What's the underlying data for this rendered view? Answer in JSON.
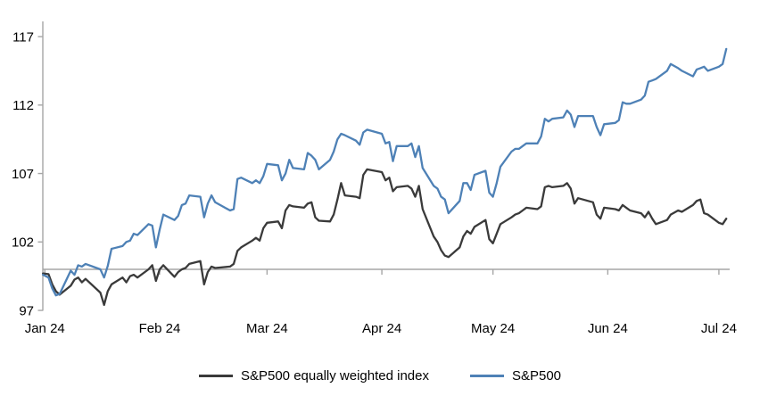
{
  "chart_data": {
    "type": "line",
    "title": "",
    "xlabel": "",
    "ylabel": "",
    "grid": false,
    "legend_position": "bottom-center",
    "colors": {
      "axis_gray": "#a6a6a6",
      "text": "#000000",
      "equal_weight_line": "#3a3a3a",
      "sp500_line": "#4e81b6"
    },
    "y_axis": {
      "ticks": [
        97,
        102,
        107,
        112,
        117
      ],
      "ylim": [
        97,
        117
      ],
      "baseline_value": 100
    },
    "x_axis": {
      "unit": "days since 2023-12-29",
      "ticks": [
        {
          "label": "Jan 24",
          "day": 3
        },
        {
          "label": "Feb 24",
          "day": 34
        },
        {
          "label": "Mar 24",
          "day": 63
        },
        {
          "label": "Apr 24",
          "day": 94
        },
        {
          "label": "May 24",
          "day": 124
        },
        {
          "label": "Jun 24",
          "day": 155
        },
        {
          "label": "Jul 24",
          "day": 185
        }
      ]
    },
    "series": [
      {
        "name": "S&P500 equally weighted index",
        "color": "#3a3a3a",
        "points": [
          [
            2.5,
            99.7
          ],
          [
            4,
            99.65
          ],
          [
            5,
            98.9
          ],
          [
            6,
            98.4
          ],
          [
            7,
            98.15
          ],
          [
            10,
            98.8
          ],
          [
            11,
            99.25
          ],
          [
            12,
            99.4
          ],
          [
            13,
            99.05
          ],
          [
            14,
            99.3
          ],
          [
            18,
            98.3
          ],
          [
            19,
            97.4
          ],
          [
            20,
            98.4
          ],
          [
            21,
            98.9
          ],
          [
            24,
            99.4
          ],
          [
            25,
            99.05
          ],
          [
            26,
            99.5
          ],
          [
            27,
            99.6
          ],
          [
            28,
            99.4
          ],
          [
            31,
            100.0
          ],
          [
            32,
            100.3
          ],
          [
            33,
            99.15
          ],
          [
            34,
            100.0
          ],
          [
            35,
            100.3
          ],
          [
            38,
            99.45
          ],
          [
            39,
            99.8
          ],
          [
            40,
            100.0
          ],
          [
            41,
            100.1
          ],
          [
            42,
            100.4
          ],
          [
            45,
            100.6
          ],
          [
            46,
            98.9
          ],
          [
            47,
            99.8
          ],
          [
            48,
            100.2
          ],
          [
            49,
            100.1
          ],
          [
            53,
            100.2
          ],
          [
            54,
            100.4
          ],
          [
            55,
            101.35
          ],
          [
            56,
            101.6
          ],
          [
            59,
            102.1
          ],
          [
            60,
            102.3
          ],
          [
            61,
            102.1
          ],
          [
            62,
            103.0
          ],
          [
            63,
            103.4
          ],
          [
            66,
            103.5
          ],
          [
            67,
            103.0
          ],
          [
            68,
            104.3
          ],
          [
            69,
            104.7
          ],
          [
            70,
            104.6
          ],
          [
            73,
            104.5
          ],
          [
            74,
            104.8
          ],
          [
            75,
            104.9
          ],
          [
            76,
            103.8
          ],
          [
            77,
            103.55
          ],
          [
            80,
            103.5
          ],
          [
            81,
            104.0
          ],
          [
            82,
            105.1
          ],
          [
            83,
            106.3
          ],
          [
            84,
            105.4
          ],
          [
            87,
            105.3
          ],
          [
            88,
            105.2
          ],
          [
            89,
            106.9
          ],
          [
            90,
            107.3
          ],
          [
            94,
            107.1
          ],
          [
            95,
            106.5
          ],
          [
            96,
            106.7
          ],
          [
            97,
            105.7
          ],
          [
            98,
            106.0
          ],
          [
            101,
            106.1
          ],
          [
            102,
            105.9
          ],
          [
            103,
            105.3
          ],
          [
            104,
            106.1
          ],
          [
            105,
            104.4
          ],
          [
            108,
            102.4
          ],
          [
            109,
            102.0
          ],
          [
            110,
            101.4
          ],
          [
            111,
            101.0
          ],
          [
            112,
            100.9
          ],
          [
            115,
            101.6
          ],
          [
            116,
            102.4
          ],
          [
            117,
            102.8
          ],
          [
            118,
            102.6
          ],
          [
            119,
            103.1
          ],
          [
            122,
            103.6
          ],
          [
            123,
            102.2
          ],
          [
            124,
            101.9
          ],
          [
            125,
            102.6
          ],
          [
            126,
            103.3
          ],
          [
            129,
            103.8
          ],
          [
            130,
            104.0
          ],
          [
            131,
            104.1
          ],
          [
            132,
            104.3
          ],
          [
            133,
            104.5
          ],
          [
            136,
            104.4
          ],
          [
            137,
            104.6
          ],
          [
            138,
            106.0
          ],
          [
            139,
            106.1
          ],
          [
            140,
            106.0
          ],
          [
            143,
            106.1
          ],
          [
            144,
            106.3
          ],
          [
            145,
            105.9
          ],
          [
            146,
            104.8
          ],
          [
            147,
            105.2
          ],
          [
            151,
            104.9
          ],
          [
            152,
            104.0
          ],
          [
            153,
            103.7
          ],
          [
            154,
            104.5
          ],
          [
            157,
            104.4
          ],
          [
            158,
            104.3
          ],
          [
            159,
            104.7
          ],
          [
            160,
            104.5
          ],
          [
            161,
            104.3
          ],
          [
            164,
            104.1
          ],
          [
            165,
            103.8
          ],
          [
            166,
            104.2
          ],
          [
            167,
            103.7
          ],
          [
            168,
            103.3
          ],
          [
            171,
            103.6
          ],
          [
            172,
            104.0
          ],
          [
            174,
            104.3
          ],
          [
            175,
            104.2
          ],
          [
            178,
            104.7
          ],
          [
            179,
            105.0
          ],
          [
            180,
            105.1
          ],
          [
            181,
            104.1
          ],
          [
            182,
            104.0
          ],
          [
            185,
            103.4
          ],
          [
            186,
            103.3
          ],
          [
            187,
            103.7
          ]
        ]
      },
      {
        "name": "S&P500",
        "color": "#4e81b6",
        "points": [
          [
            2.5,
            99.6
          ],
          [
            4,
            99.4
          ],
          [
            5,
            98.6
          ],
          [
            6,
            98.1
          ],
          [
            7,
            98.2
          ],
          [
            10,
            99.9
          ],
          [
            11,
            99.6
          ],
          [
            12,
            100.3
          ],
          [
            13,
            100.2
          ],
          [
            14,
            100.4
          ],
          [
            18,
            100.0
          ],
          [
            19,
            99.4
          ],
          [
            20,
            100.25
          ],
          [
            21,
            101.5
          ],
          [
            24,
            101.7
          ],
          [
            25,
            102.0
          ],
          [
            26,
            102.1
          ],
          [
            27,
            102.6
          ],
          [
            28,
            102.5
          ],
          [
            31,
            103.3
          ],
          [
            32,
            103.2
          ],
          [
            33,
            101.6
          ],
          [
            34,
            102.9
          ],
          [
            35,
            104.0
          ],
          [
            38,
            103.6
          ],
          [
            39,
            103.9
          ],
          [
            40,
            104.7
          ],
          [
            41,
            104.8
          ],
          [
            42,
            105.4
          ],
          [
            45,
            105.3
          ],
          [
            46,
            103.8
          ],
          [
            47,
            104.8
          ],
          [
            48,
            105.4
          ],
          [
            49,
            104.9
          ],
          [
            53,
            104.3
          ],
          [
            54,
            104.4
          ],
          [
            55,
            106.6
          ],
          [
            56,
            106.7
          ],
          [
            59,
            106.3
          ],
          [
            60,
            106.5
          ],
          [
            61,
            106.3
          ],
          [
            62,
            106.8
          ],
          [
            63,
            107.7
          ],
          [
            66,
            107.6
          ],
          [
            67,
            106.5
          ],
          [
            68,
            107.0
          ],
          [
            69,
            108.0
          ],
          [
            70,
            107.4
          ],
          [
            73,
            107.3
          ],
          [
            74,
            108.5
          ],
          [
            75,
            108.3
          ],
          [
            76,
            108.0
          ],
          [
            77,
            107.3
          ],
          [
            80,
            108.0
          ],
          [
            81,
            108.6
          ],
          [
            82,
            109.5
          ],
          [
            83,
            109.9
          ],
          [
            84,
            109.8
          ],
          [
            87,
            109.4
          ],
          [
            88,
            109.1
          ],
          [
            89,
            110.0
          ],
          [
            90,
            110.2
          ],
          [
            94,
            109.9
          ],
          [
            95,
            109.2
          ],
          [
            96,
            109.3
          ],
          [
            97,
            107.9
          ],
          [
            98,
            109.0
          ],
          [
            101,
            109.0
          ],
          [
            102,
            109.2
          ],
          [
            103,
            108.2
          ],
          [
            104,
            109.0
          ],
          [
            105,
            107.4
          ],
          [
            108,
            106.1
          ],
          [
            109,
            105.9
          ],
          [
            110,
            105.3
          ],
          [
            111,
            105.1
          ],
          [
            112,
            104.1
          ],
          [
            115,
            105.0
          ],
          [
            116,
            106.3
          ],
          [
            117,
            106.3
          ],
          [
            118,
            105.8
          ],
          [
            119,
            106.9
          ],
          [
            122,
            107.2
          ],
          [
            123,
            105.6
          ],
          [
            124,
            105.3
          ],
          [
            125,
            106.3
          ],
          [
            126,
            107.5
          ],
          [
            129,
            108.6
          ],
          [
            130,
            108.8
          ],
          [
            131,
            108.8
          ],
          [
            132,
            109.0
          ],
          [
            133,
            109.2
          ],
          [
            136,
            109.2
          ],
          [
            137,
            109.7
          ],
          [
            138,
            111.0
          ],
          [
            139,
            110.8
          ],
          [
            140,
            111.0
          ],
          [
            143,
            111.1
          ],
          [
            144,
            111.6
          ],
          [
            145,
            111.3
          ],
          [
            146,
            110.4
          ],
          [
            147,
            111.2
          ],
          [
            151,
            111.2
          ],
          [
            152,
            110.4
          ],
          [
            153,
            109.8
          ],
          [
            154,
            110.6
          ],
          [
            157,
            110.7
          ],
          [
            158,
            110.9
          ],
          [
            159,
            112.2
          ],
          [
            160,
            112.1
          ],
          [
            161,
            112.1
          ],
          [
            164,
            112.4
          ],
          [
            165,
            112.7
          ],
          [
            166,
            113.7
          ],
          [
            167,
            113.8
          ],
          [
            168,
            113.9
          ],
          [
            171,
            114.5
          ],
          [
            172,
            115.0
          ],
          [
            174,
            114.7
          ],
          [
            175,
            114.5
          ],
          [
            178,
            114.1
          ],
          [
            179,
            114.6
          ],
          [
            180,
            114.7
          ],
          [
            181,
            114.8
          ],
          [
            182,
            114.5
          ],
          [
            185,
            114.8
          ],
          [
            186,
            115.0
          ],
          [
            187,
            116.1
          ]
        ]
      }
    ]
  },
  "legend": {
    "items": [
      {
        "label": "S&P500 equally weighted index",
        "color": "#3a3a3a"
      },
      {
        "label": "S&P500",
        "color": "#4e81b6"
      }
    ]
  }
}
